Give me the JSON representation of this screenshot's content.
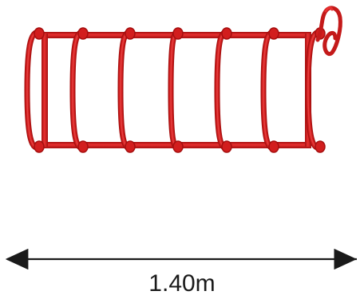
{
  "diagram": {
    "dimension_label": "1.40m",
    "colors": {
      "coil": "#d21e1e",
      "coil_dark": "#a50f0f",
      "coil_highlight": "#f25a5a",
      "arrow": "#1a1a1a",
      "background": "#ffffff"
    },
    "icons": [
      "helical-coil-icon",
      "double-arrow-icon"
    ]
  }
}
